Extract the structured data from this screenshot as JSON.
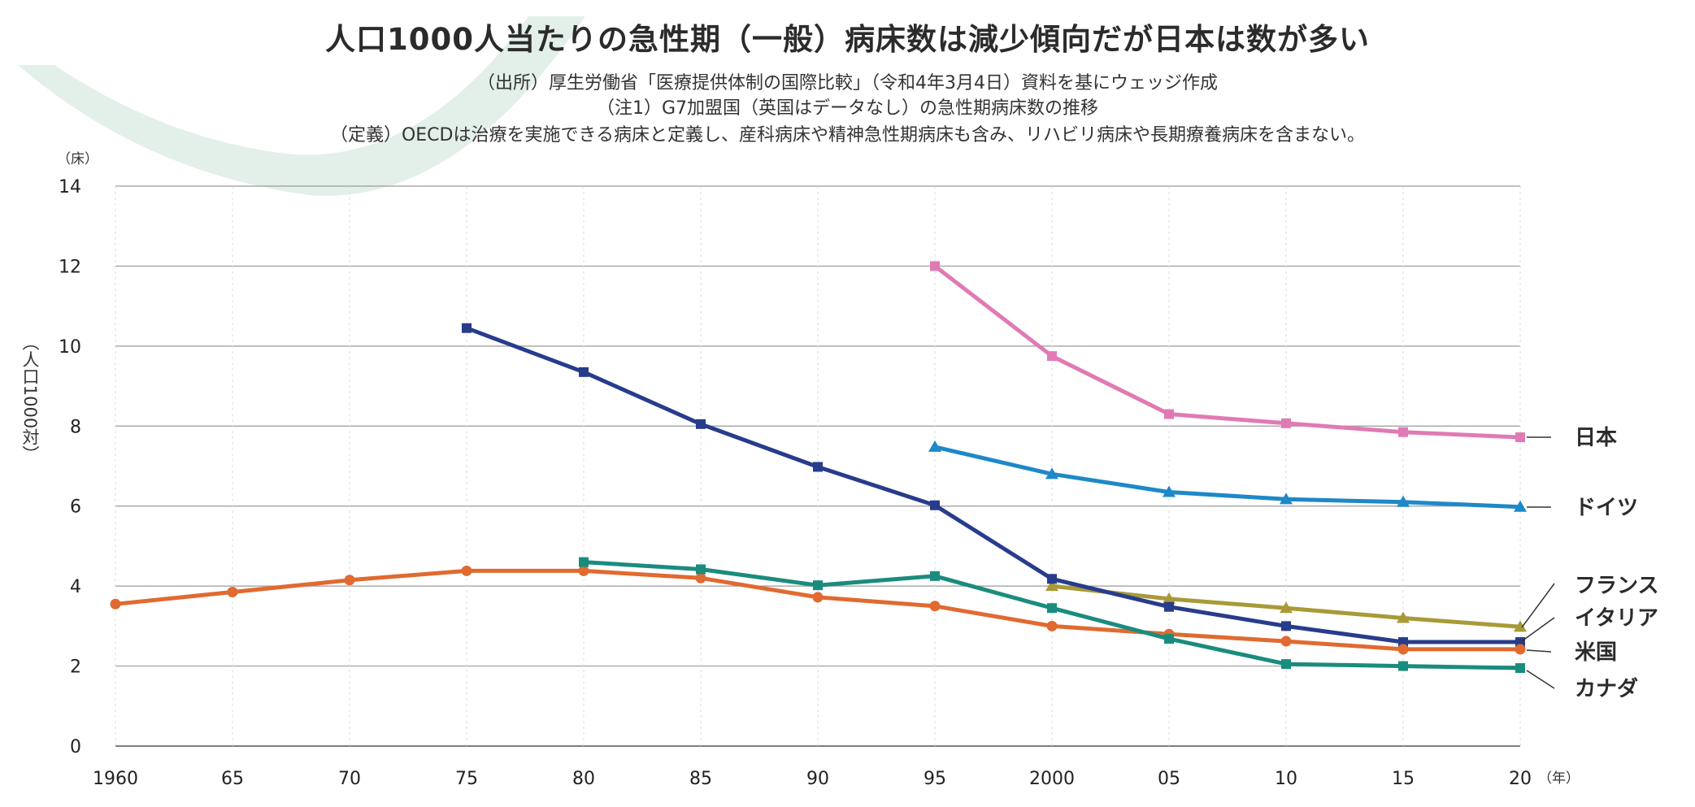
{
  "chart_data": {
    "type": "line",
    "title": "人口1000人当たりの急性期（一般）病床数は減少傾向だが日本は数が多い",
    "subtitle": "（出所）厚生労働省「医療提供体制の国際比較」（令和4年3月4日）資料を基にウェッジ作成",
    "note": "（注1）G7加盟国（英国はデータなし）の急性期病床数の推移",
    "definition": "（定義）OECDは治療を実施できる病床と定義し、産科病床や精神急性期病床も含み、リハビリ病床や長期療養病床を含まない。",
    "y_unit": "（床）",
    "ylabel": "（人口1000対）",
    "x_unit": "（年）",
    "ylim": [
      0,
      14
    ],
    "yticks": [
      0,
      2,
      4,
      6,
      8,
      10,
      12,
      14
    ],
    "xlim": [
      1960,
      2020
    ],
    "x_ticks": [
      {
        "value": 1960,
        "label": "1960"
      },
      {
        "value": 1965,
        "label": "65"
      },
      {
        "value": 1970,
        "label": "70"
      },
      {
        "value": 1975,
        "label": "75"
      },
      {
        "value": 1980,
        "label": "80"
      },
      {
        "value": 1985,
        "label": "85"
      },
      {
        "value": 1990,
        "label": "90"
      },
      {
        "value": 1995,
        "label": "95"
      },
      {
        "value": 2000,
        "label": "2000"
      },
      {
        "value": 2005,
        "label": "05"
      },
      {
        "value": 2010,
        "label": "10"
      },
      {
        "value": 2015,
        "label": "15"
      },
      {
        "value": 2020,
        "label": "20"
      }
    ],
    "grid": true,
    "series": [
      {
        "name": "日本",
        "color": "#e07ab4",
        "marker": "square",
        "x": [
          1995,
          2000,
          2005,
          2010,
          2015,
          2020
        ],
        "y": [
          12.0,
          9.75,
          8.3,
          8.07,
          7.85,
          7.72
        ]
      },
      {
        "name": "ドイツ",
        "color": "#1e88c8",
        "marker": "triangle",
        "x": [
          1995,
          2000,
          2005,
          2010,
          2015,
          2020
        ],
        "y": [
          7.48,
          6.8,
          6.35,
          6.17,
          6.1,
          5.98
        ]
      },
      {
        "name": "フランス",
        "color": "#a89a38",
        "marker": "triangle",
        "x": [
          2000,
          2005,
          2010,
          2015,
          2020
        ],
        "y": [
          4.0,
          3.68,
          3.45,
          3.2,
          2.98
        ]
      },
      {
        "name": "イタリア",
        "color": "#283c8c",
        "marker": "square",
        "x": [
          1975,
          1980,
          1985,
          1990,
          1995,
          2000,
          2005,
          2010,
          2015,
          2020
        ],
        "y": [
          10.45,
          9.35,
          8.05,
          6.98,
          6.02,
          4.18,
          3.48,
          3.0,
          2.6,
          2.6
        ]
      },
      {
        "name": "米国",
        "color": "#e06a30",
        "marker": "circle",
        "x": [
          1960,
          1965,
          1970,
          1975,
          1980,
          1985,
          1990,
          1995,
          2000,
          2005,
          2010,
          2015,
          2020
        ],
        "y": [
          3.55,
          3.85,
          4.15,
          4.38,
          4.38,
          4.2,
          3.72,
          3.5,
          3.0,
          2.8,
          2.62,
          2.42,
          2.42
        ]
      },
      {
        "name": "カナダ",
        "color": "#1a8c7e",
        "marker": "square",
        "x": [
          1980,
          1985,
          1990,
          1995,
          2000,
          2005,
          2010,
          2015,
          2020
        ],
        "y": [
          4.6,
          4.42,
          4.02,
          4.25,
          3.45,
          2.68,
          2.05,
          2.0,
          1.95
        ]
      }
    ]
  }
}
